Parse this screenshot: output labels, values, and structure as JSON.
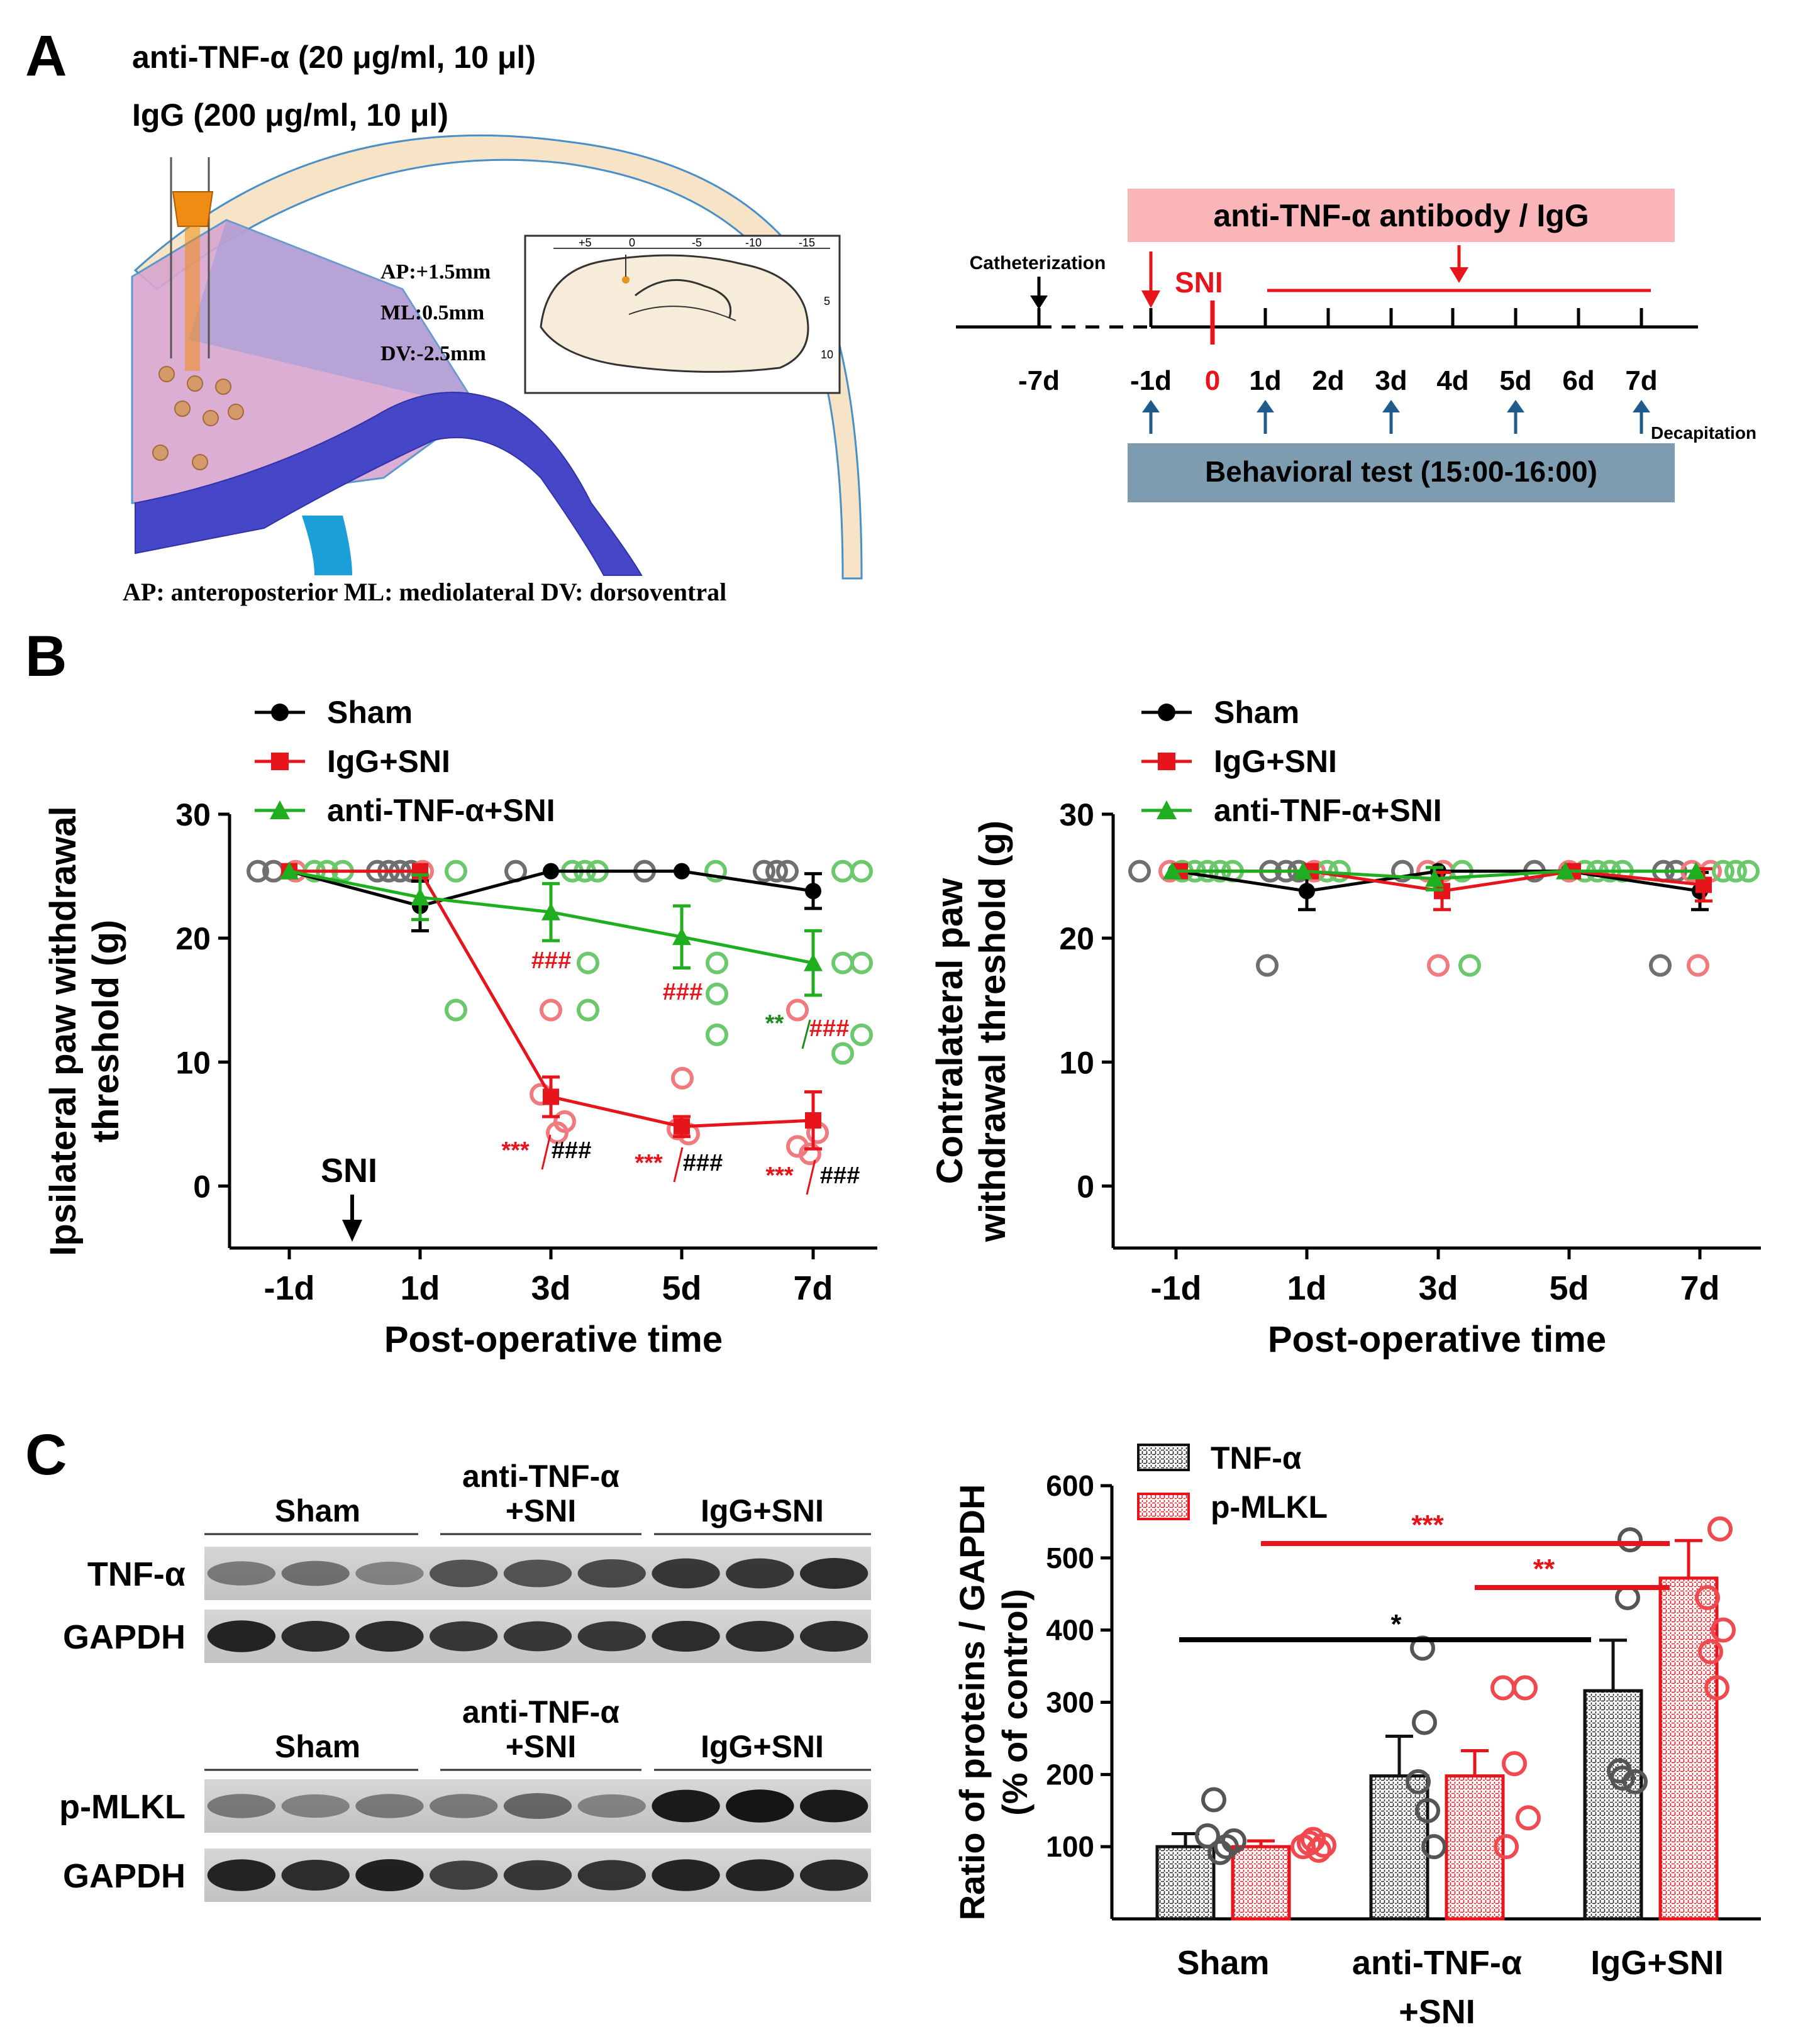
{
  "panels": {
    "a": "A",
    "b": "B",
    "c": "C"
  },
  "panel_a": {
    "dose1": "anti-TNF-α (20 μg/ml, 10 μl)",
    "dose2": "IgG (200 μg/ml, 10 μl)",
    "coords": [
      "AP:+1.5mm",
      "ML:0.5mm",
      "DV:-2.5mm"
    ],
    "inset_ticks": [
      "+5",
      "0",
      "-5",
      "-10",
      "-15"
    ],
    "inset_side_ticks": [
      "5",
      "10"
    ],
    "caption": "AP: anteroposterior  ML: mediolateral  DV: dorsoventral",
    "colors": {
      "brain_fill": "#d9a6cf",
      "corpus_callosum": "#4646c8",
      "ventricle": "#1a9fd8",
      "skull": "#f7e3c6",
      "tube": "#f08c14"
    }
  },
  "timeline": {
    "treatment_box": "anti-TNF-α antibody / IgG",
    "catheter_label": "Catheterization",
    "sni_label": "SNI",
    "days": [
      "-7d",
      "-1d",
      "0",
      "1d",
      "2d",
      "3d",
      "4d",
      "5d",
      "6d",
      "7d"
    ],
    "behavior_box": "Behavioral test (15:00-16:00)",
    "decap_label": "Decapitation",
    "colors": {
      "treatment_box": "#f9b5b8",
      "behavior_box": "#7e9cb0",
      "red": "#e8141c",
      "arrow_blue": "#1f5c8c"
    }
  },
  "legend_b": [
    "Sham",
    "IgG+SNI",
    "anti-TNF-α+SNI"
  ],
  "chart_data": [
    {
      "type": "line",
      "ylabel": "Ipsilateral paw withdrawal threshold (g)",
      "xlabel": "Post-operative time",
      "x_categories": [
        "-1d",
        "1d",
        "3d",
        "5d",
        "7d"
      ],
      "ylim": [
        -5,
        30
      ],
      "yticks": [
        "30",
        "20",
        "10",
        "0"
      ],
      "annotation_sni": "SNI",
      "series": [
        {
          "name": "Sham",
          "color": "#000000",
          "marker": "circle",
          "values": [
            25.4,
            22.6,
            25.4,
            25.4,
            23.8
          ],
          "err": [
            0,
            2.0,
            0,
            0,
            1.4
          ]
        },
        {
          "name": "IgG+SNI",
          "color": "#e8141c",
          "marker": "square",
          "values": [
            25.4,
            25.4,
            7.2,
            4.8,
            5.3
          ],
          "err": [
            0,
            0,
            1.6,
            0.8,
            2.3
          ]
        },
        {
          "name": "anti-TNF-α+SNI",
          "color": "#1fae1f",
          "marker": "triangle",
          "values": [
            25.4,
            23.3,
            22.1,
            20.1,
            18.0
          ],
          "err": [
            0,
            1.8,
            2.3,
            2.5,
            2.6
          ]
        }
      ],
      "significance": [
        "###",
        "###",
        "**",
        "###",
        "***",
        "###",
        "***",
        "###",
        "***",
        "###"
      ]
    },
    {
      "type": "line",
      "ylabel": "Contralateral paw withdrawal threshold (g)",
      "xlabel": "Post-operative time",
      "x_categories": [
        "-1d",
        "1d",
        "3d",
        "5d",
        "7d"
      ],
      "ylim": [
        -5,
        30
      ],
      "yticks": [
        "30",
        "20",
        "10",
        "0"
      ],
      "series": [
        {
          "name": "Sham",
          "color": "#000000",
          "marker": "circle",
          "values": [
            25.4,
            23.8,
            25.4,
            25.4,
            23.8
          ],
          "err": [
            0,
            1.5,
            0,
            0,
            1.5
          ]
        },
        {
          "name": "IgG+SNI",
          "color": "#e8141c",
          "marker": "square",
          "values": [
            25.4,
            25.4,
            23.8,
            25.4,
            24.3
          ],
          "err": [
            0,
            0,
            1.5,
            0,
            1.3
          ]
        },
        {
          "name": "anti-TNF-α+SNI",
          "color": "#1fae1f",
          "marker": "triangle",
          "values": [
            25.4,
            25.4,
            24.8,
            25.4,
            25.4
          ],
          "err": [
            0,
            0,
            0.9,
            0,
            0
          ]
        }
      ]
    },
    {
      "type": "bar",
      "ylabel": "Ratio of proteins / GAPDH (% of control)",
      "categories": [
        "Sham",
        "anti-TNF-α +SNI",
        "IgG+SNI"
      ],
      "ylim": [
        0,
        600
      ],
      "yticks": [
        "600",
        "500",
        "400",
        "300",
        "200",
        "100"
      ],
      "series": [
        {
          "name": "TNF-α",
          "color": "#000000",
          "values": [
            100,
            198,
            316
          ],
          "err": [
            18,
            55,
            70
          ]
        },
        {
          "name": "p-MLKL",
          "color": "#e8141c",
          "values": [
            100,
            198,
            472
          ],
          "err": [
            8,
            35,
            52
          ]
        }
      ],
      "significance": [
        "***",
        "**",
        "*"
      ]
    }
  ],
  "blots": {
    "group_labels": [
      "Sham",
      "anti-TNF-α",
      "+SNI",
      "IgG+SNI"
    ],
    "rows": [
      "TNF-α",
      "GAPDH",
      "p-MLKL",
      "GAPDH"
    ]
  }
}
